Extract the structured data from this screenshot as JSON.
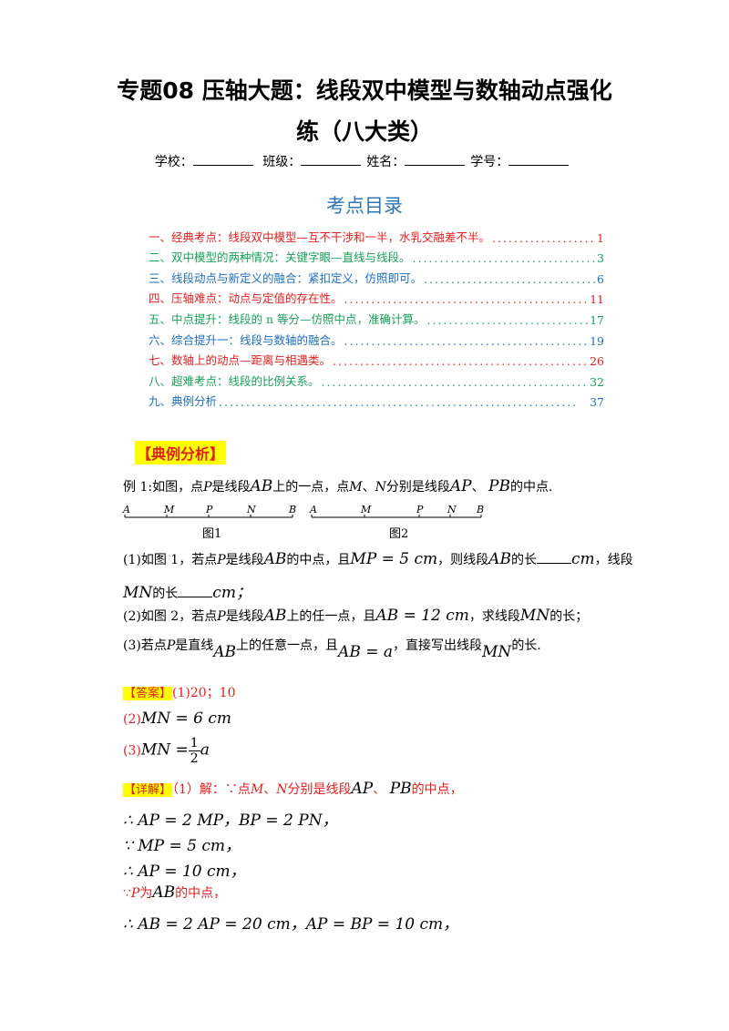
{
  "doc": {
    "title_line1": "专题08 压轴大题：线段双中模型与数轴动点强化",
    "title_line2": "练（八大类）",
    "school_label": "学校：",
    "class_label": "班级：",
    "name_label": "姓名：",
    "number_label": "学号："
  },
  "toc": {
    "title": "考点目录",
    "items": [
      {
        "label": "一、经典考点：线段双中模型—互不干涉和一半，水乳交融差不半。",
        "page": "1"
      },
      {
        "label": "二、双中模型的两种情况：关键字眼—直线与线段。",
        "page": "3"
      },
      {
        "label": "三、线段动点与新定义的融合：紧扣定义，仿照即可。",
        "page": "6"
      },
      {
        "label": "四、压轴难点：动点与定值的存在性。",
        "page": "11"
      },
      {
        "label": "五、中点提升：线段的 n 等分—仿照中点，准确计算。",
        "page": "17"
      },
      {
        "label": "六、综合提升一：线段与数轴的融合。",
        "page": "19"
      },
      {
        "label": "七、数轴上的动点—距离与相遇类。",
        "page": "26"
      },
      {
        "label": "八、超难考点：线段的比例关系。",
        "page": "32"
      },
      {
        "label": "九、典例分析",
        "page": "37"
      }
    ]
  },
  "section": {
    "heading": "【典例分析】"
  },
  "example": {
    "intro_a": "例 1:如图，点",
    "P": "P",
    "intro_b": "是线段",
    "AB": "AB",
    "intro_c": "上的一点，点",
    "M": "M",
    "sep": "、",
    "N": "N",
    "intro_d": "分别是线段",
    "AP": "AP",
    "sep2": "、",
    "PB": "PB",
    "intro_e": "的中点.",
    "figure": {
      "fig1_points": [
        "A",
        "M",
        "P",
        "N",
        "B"
      ],
      "fig2_points": [
        "A",
        "M",
        "P",
        "N",
        "B"
      ],
      "fig1_caption": "图1",
      "fig2_caption": "图2"
    },
    "q1_a": "(1)如图 1，若点",
    "q1_b": "是线段",
    "q1_c": "的中点，且",
    "q1_eq": "MP = 5 cm",
    "q1_d": "，则线段",
    "q1_e": "的长",
    "q1_unit": "cm",
    "q1_f": "，线段",
    "q1_g_mn": "MN",
    "q1_g": "的长",
    "q1_h": "cm；",
    "q2_a": "(2)如图 2，若点",
    "q2_b": "是线段",
    "q2_c": "上的任一点，且",
    "q2_eq": "AB = 12 cm",
    "q2_d": "，求线段",
    "q2_mn": "MN",
    "q2_e": "的长；",
    "q3_a": "(3)若点",
    "q3_b": "是直线",
    "q3_c": "上的任意一点，且",
    "q3_eq": "AB = a",
    "q3_d": "，直接写出线段",
    "q3_mn": "MN",
    "q3_e": "的长."
  },
  "answer": {
    "tag": "【答案】",
    "a1": "(1)20；10",
    "a2_label": "(2)",
    "a2": "MN = 6 cm",
    "a3_label": "(3)",
    "a3_lhs": "MN =",
    "a3_num": "1",
    "a3_den": "2",
    "a3_var": "a"
  },
  "explain": {
    "tag": "【详解】",
    "l1_a": "（1）解：∵点",
    "l1_b": "分别是线段",
    "l1_c": "的中点，",
    "l2": "∴ AP = 2 MP，BP = 2 PN，",
    "l3": "∵ MP = 5 cm，",
    "l4": "∴ AP = 10 cm，",
    "l5_a": "∵",
    "l5_b": "为",
    "l5_c": "的中点，",
    "l6": "∴ AB = 2 AP = 20 cm，AP = BP = 10 cm，"
  }
}
